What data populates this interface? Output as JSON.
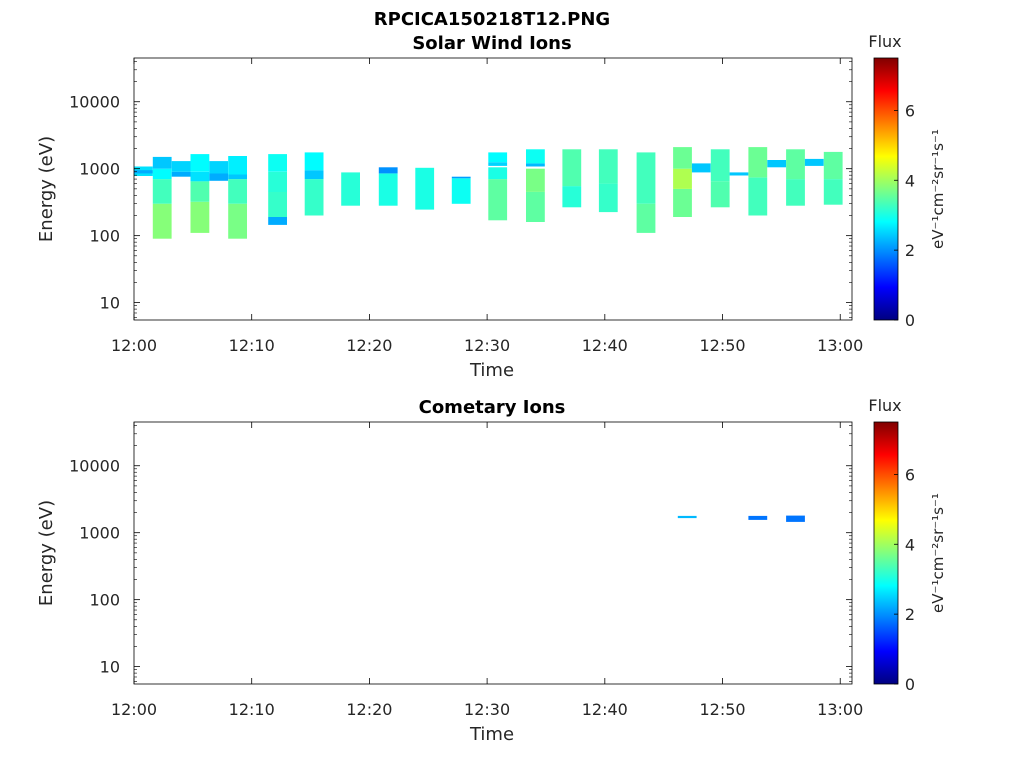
{
  "figure": {
    "title": "RPCICA150218T12.PNG"
  },
  "chart_data": [
    {
      "type": "heatmap",
      "title": "Solar Wind Ions",
      "xlabel": "Time",
      "ylabel": "Energy (eV)",
      "x_ticks": [
        "12:00",
        "12:10",
        "12:20",
        "12:30",
        "12:40",
        "12:50",
        "13:00"
      ],
      "xlim_minutes": [
        0,
        61
      ],
      "y_scale": "log",
      "y_ticks": [
        "10",
        "100",
        "1000",
        "10000"
      ],
      "y_tick_values": [
        10,
        100,
        1000,
        10000
      ],
      "ylim": [
        5.5,
        45000
      ],
      "colorbar": {
        "label": "Flux",
        "units": "eV⁻¹cm⁻²sr⁻¹s⁻¹",
        "ticks": [
          "0",
          "2",
          "4",
          "6"
        ],
        "range": [
          0,
          7.5
        ],
        "colormap": "jet"
      },
      "series": [
        {
          "t0": 0.0,
          "t1": 1.6,
          "blocks": [
            [
              780,
              1080,
              2.6
            ],
            [
              850,
              950,
              2.2
            ]
          ]
        },
        {
          "t0": 1.6,
          "t1": 3.2,
          "blocks": [
            [
              90,
              300,
              3.8
            ],
            [
              300,
              700,
              3.3
            ],
            [
              700,
              1000,
              2.8
            ],
            [
              1000,
              1500,
              2.4
            ]
          ]
        },
        {
          "t0": 3.2,
          "t1": 4.8,
          "blocks": [
            [
              760,
              900,
              2.2
            ],
            [
              900,
              1300,
              2.5
            ]
          ]
        },
        {
          "t0": 4.8,
          "t1": 6.4,
          "blocks": [
            [
              110,
              320,
              3.8
            ],
            [
              320,
              650,
              3.4
            ],
            [
              650,
              900,
              2.6
            ],
            [
              900,
              1650,
              2.8
            ]
          ]
        },
        {
          "t0": 6.4,
          "t1": 8.0,
          "blocks": [
            [
              660,
              850,
              2.2
            ],
            [
              850,
              1300,
              2.5
            ]
          ]
        },
        {
          "t0": 8.0,
          "t1": 9.6,
          "blocks": [
            [
              90,
              300,
              3.7
            ],
            [
              300,
              700,
              3.3
            ],
            [
              700,
              820,
              2.4
            ],
            [
              820,
              1550,
              2.7
            ]
          ]
        },
        {
          "t0": 11.4,
          "t1": 13.0,
          "blocks": [
            [
              145,
              190,
              2.2
            ],
            [
              190,
              450,
              3.2
            ],
            [
              450,
              900,
              3.1
            ],
            [
              900,
              1650,
              2.9
            ]
          ]
        },
        {
          "t0": 14.5,
          "t1": 16.1,
          "blocks": [
            [
              200,
              700,
              3.2
            ],
            [
              700,
              950,
              2.4
            ],
            [
              950,
              1750,
              2.8
            ]
          ]
        },
        {
          "t0": 17.6,
          "t1": 19.2,
          "blocks": [
            [
              280,
              880,
              3.1
            ]
          ]
        },
        {
          "t0": 20.8,
          "t1": 22.4,
          "blocks": [
            [
              280,
              850,
              3.0
            ],
            [
              850,
              1050,
              2.0
            ]
          ]
        },
        {
          "t0": 23.9,
          "t1": 25.5,
          "blocks": [
            [
              245,
              1030,
              3.0
            ]
          ]
        },
        {
          "t0": 27.0,
          "t1": 28.6,
          "blocks": [
            [
              300,
              720,
              2.9
            ],
            [
              720,
              760,
              2.1
            ]
          ]
        },
        {
          "t0": 30.1,
          "t1": 31.7,
          "blocks": [
            [
              170,
              700,
              3.5
            ],
            [
              700,
              1050,
              3.0
            ],
            [
              1100,
              1250,
              2.5
            ],
            [
              1250,
              1750,
              2.8
            ]
          ]
        },
        {
          "t0": 33.3,
          "t1": 34.9,
          "blocks": [
            [
              160,
              450,
              3.5
            ],
            [
              450,
              1000,
              3.7
            ],
            [
              1080,
              1200,
              2.3
            ],
            [
              1200,
              1950,
              2.9
            ]
          ]
        },
        {
          "t0": 36.4,
          "t1": 38.0,
          "blocks": [
            [
              265,
              550,
              3.1
            ],
            [
              550,
              1950,
              3.4
            ]
          ]
        },
        {
          "t0": 39.5,
          "t1": 41.1,
          "blocks": [
            [
              225,
              600,
              3.2
            ],
            [
              600,
              1950,
              3.3
            ]
          ]
        },
        {
          "t0": 42.7,
          "t1": 44.3,
          "blocks": [
            [
              110,
              300,
              3.5
            ],
            [
              300,
              1750,
              3.3
            ]
          ]
        },
        {
          "t0": 45.8,
          "t1": 47.4,
          "blocks": [
            [
              190,
              500,
              3.6
            ],
            [
              500,
              1000,
              4.1
            ],
            [
              1000,
              2100,
              3.6
            ]
          ]
        },
        {
          "t0": 47.4,
          "t1": 49.0,
          "blocks": [
            [
              880,
              1200,
              2.4
            ]
          ]
        },
        {
          "t0": 49.0,
          "t1": 50.6,
          "blocks": [
            [
              265,
              650,
              3.4
            ],
            [
              650,
              1950,
              3.3
            ]
          ]
        },
        {
          "t0": 50.6,
          "t1": 52.2,
          "blocks": [
            [
              790,
              880,
              2.4
            ]
          ]
        },
        {
          "t0": 52.2,
          "t1": 53.8,
          "blocks": [
            [
              200,
              740,
              3.3
            ],
            [
              740,
              2100,
              3.6
            ]
          ]
        },
        {
          "t0": 53.8,
          "t1": 55.4,
          "blocks": [
            [
              1050,
              1350,
              2.4
            ]
          ]
        },
        {
          "t0": 55.4,
          "t1": 57.0,
          "blocks": [
            [
              280,
              700,
              3.3
            ],
            [
              700,
              1950,
              3.5
            ]
          ]
        },
        {
          "t0": 57.0,
          "t1": 58.6,
          "blocks": [
            [
              1100,
              1400,
              2.4
            ]
          ]
        },
        {
          "t0": 58.6,
          "t1": 60.2,
          "blocks": [
            [
              290,
              700,
              3.3
            ],
            [
              700,
              1780,
              3.5
            ]
          ]
        }
      ]
    },
    {
      "type": "heatmap",
      "title": "Cometary Ions",
      "xlabel": "Time",
      "ylabel": "Energy (eV)",
      "x_ticks": [
        "12:00",
        "12:10",
        "12:20",
        "12:30",
        "12:40",
        "12:50",
        "13:00"
      ],
      "xlim_minutes": [
        0,
        61
      ],
      "y_scale": "log",
      "y_ticks": [
        "10",
        "100",
        "1000",
        "10000"
      ],
      "y_tick_values": [
        10,
        100,
        1000,
        10000
      ],
      "ylim": [
        5.5,
        45000
      ],
      "colorbar": {
        "label": "Flux",
        "units": "eV⁻¹cm⁻²sr⁻¹s⁻¹",
        "ticks": [
          "0",
          "2",
          "4",
          "6"
        ],
        "range": [
          0,
          7.5
        ],
        "colormap": "jet"
      },
      "series": [
        {
          "t0": 46.2,
          "t1": 47.8,
          "blocks": [
            [
              1650,
              1780,
              2.3
            ]
          ]
        },
        {
          "t0": 52.2,
          "t1": 53.8,
          "blocks": [
            [
              1550,
              1780,
              1.8
            ]
          ]
        },
        {
          "t0": 55.4,
          "t1": 57.0,
          "blocks": [
            [
              1450,
              1800,
              1.8
            ]
          ]
        }
      ]
    }
  ]
}
